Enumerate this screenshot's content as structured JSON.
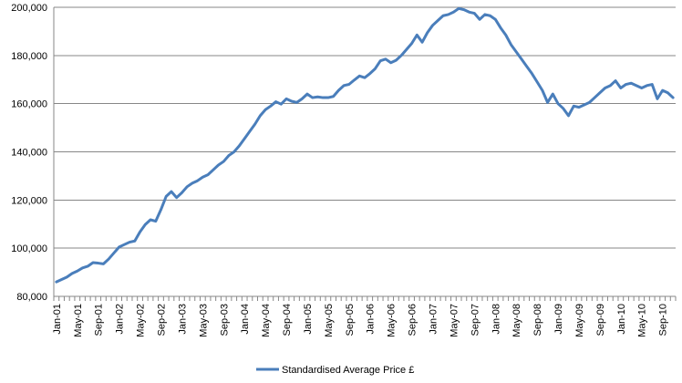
{
  "chart_data": {
    "type": "line",
    "series": [
      {
        "name": "Standardised Average  Price £",
        "color": "#4A7EBB",
        "start": "Jan-01",
        "values": [
          86000,
          87000,
          88000,
          89500,
          90500,
          91800,
          92500,
          94000,
          93800,
          93500,
          95500,
          98000,
          100500,
          101500,
          102500,
          103000,
          106800,
          109800,
          111800,
          111200,
          116000,
          121500,
          123500,
          121000,
          123000,
          125500,
          127000,
          128000,
          129500,
          130500,
          132500,
          134500,
          136000,
          138500,
          140000,
          142500,
          145500,
          148500,
          151500,
          155000,
          157500,
          159000,
          160800,
          159800,
          162000,
          161000,
          160500,
          162000,
          164000,
          162500,
          162800,
          162500,
          162500,
          163000,
          165500,
          167500,
          168000,
          169800,
          171500,
          170800,
          172500,
          174500,
          177800,
          178500,
          177000,
          178000,
          180000,
          182500,
          185000,
          188500,
          185500,
          189500,
          192500,
          194500,
          196500,
          197000,
          198000,
          199500,
          199000,
          198000,
          197500,
          195000,
          197000,
          196500,
          195000,
          191500,
          188500,
          184500,
          181500,
          178500,
          175500,
          172500,
          169000,
          165500,
          160500,
          164000,
          160000,
          158000,
          155000,
          159000,
          158500,
          159500,
          160500,
          162500,
          164500,
          166500,
          167500,
          169500,
          166500,
          168000,
          168500,
          167500,
          166500,
          167500,
          168000,
          162000,
          165500,
          164500,
          162500
        ]
      }
    ],
    "x_tick_labels": [
      "Jan-01",
      "May-01",
      "Sep-01",
      "Jan-02",
      "May-02",
      "Sep-02",
      "Jan-03",
      "May-03",
      "Sep-03",
      "Jan-04",
      "May-04",
      "Sep-04",
      "Jan-05",
      "May-05",
      "Sep-05",
      "Jan-06",
      "May-06",
      "Sep-06",
      "Jan-07",
      "May-07",
      "Sep-07",
      "Jan-08",
      "May-08",
      "Sep-08",
      "Jan-09",
      "May-09",
      "Sep-09",
      "Jan-10",
      "May-10",
      "Sep-10"
    ],
    "y_tick_labels": [
      "80,000",
      "100,000",
      "120,000",
      "140,000",
      "160,000",
      "180,000",
      "200,000"
    ],
    "ylim": [
      80000,
      200000
    ],
    "y_ticks": [
      80000,
      100000,
      120000,
      140000,
      160000,
      180000,
      200000
    ],
    "grid": "horizontal",
    "legend_position": "bottom",
    "title": "",
    "xlabel": "",
    "ylabel": ""
  }
}
